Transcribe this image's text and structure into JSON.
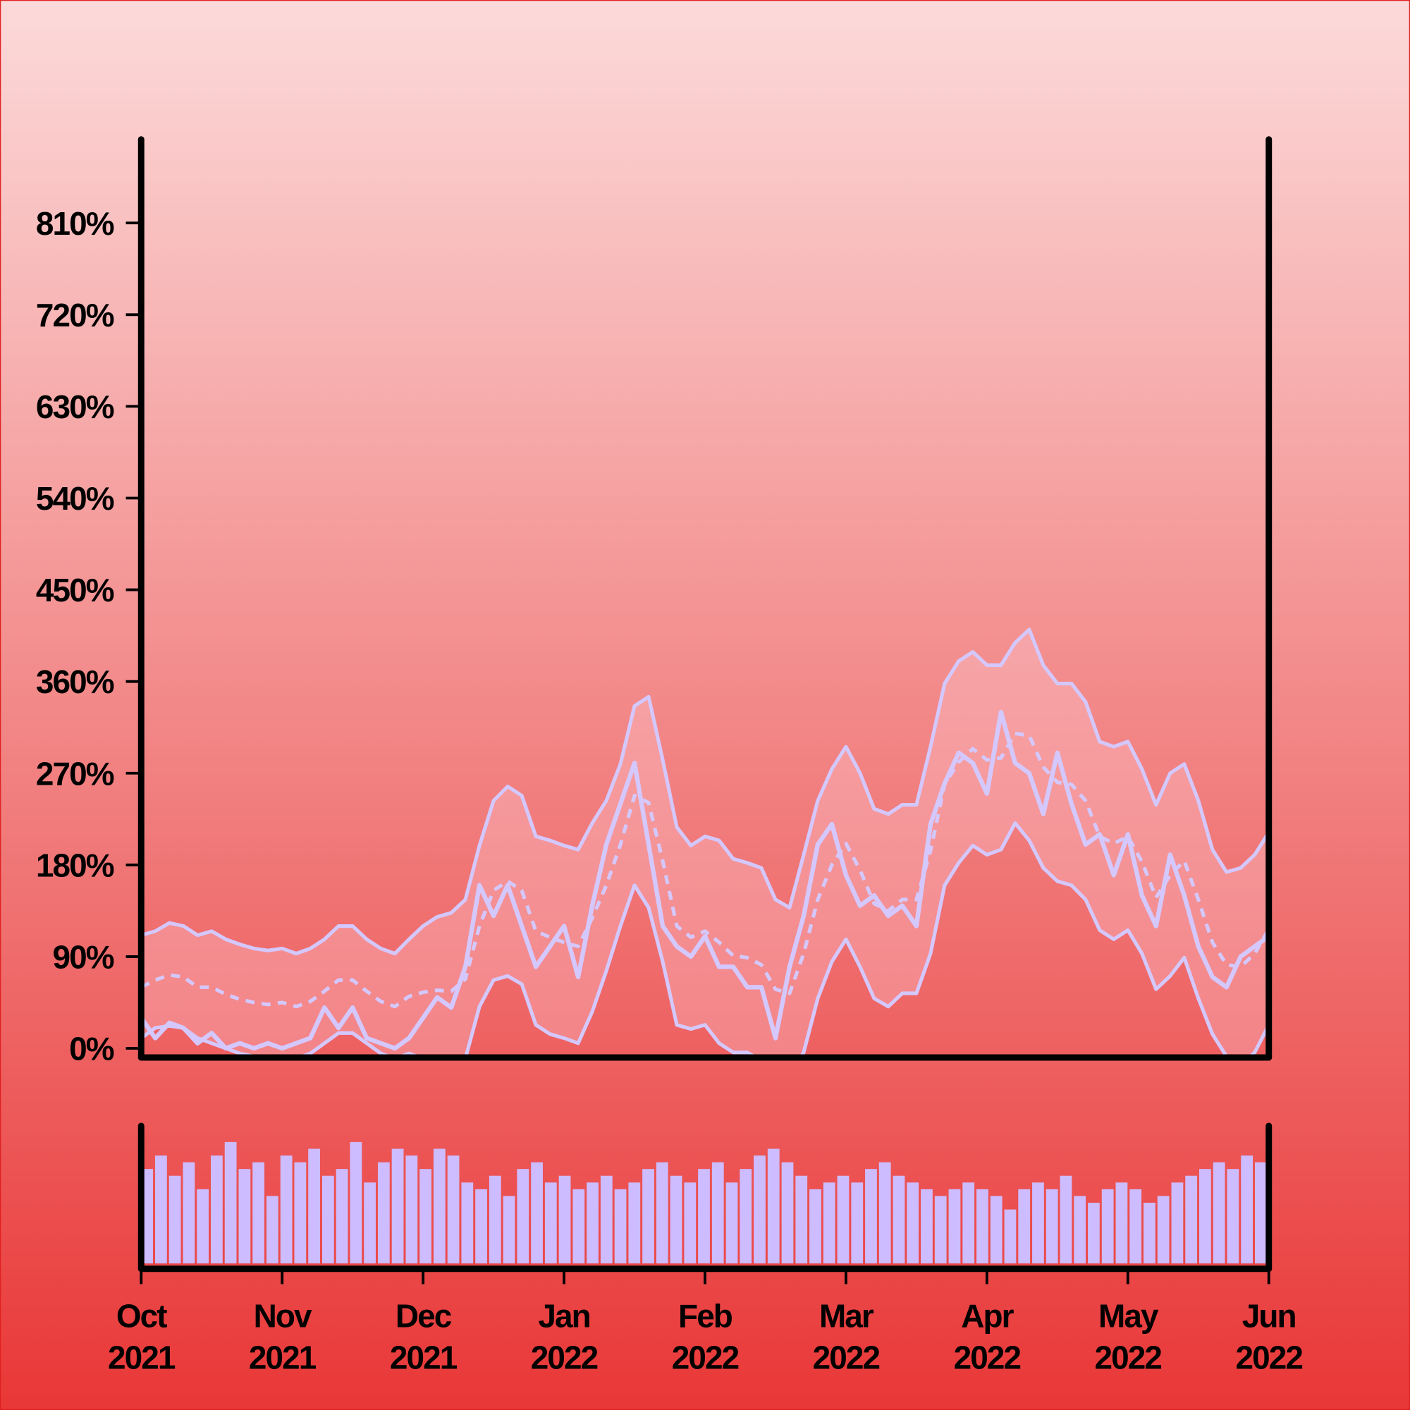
{
  "chart_data": {
    "type": "line",
    "xlim": [
      "2021-10",
      "2022-06"
    ],
    "xticks": [
      {
        "value": "2021-10",
        "label": "Oct 2021"
      },
      {
        "value": "2021-11",
        "label": "Nov 2021"
      },
      {
        "value": "2021-12",
        "label": "Dec 2021"
      },
      {
        "value": "2022-01",
        "label": "Jan 2022"
      },
      {
        "value": "2022-02",
        "label": "Feb 2022"
      },
      {
        "value": "2022-03",
        "label": "Mar 2022"
      },
      {
        "value": "2022-04",
        "label": "Apr 2022"
      },
      {
        "value": "2022-05",
        "label": "May 2022"
      },
      {
        "value": "2022-06",
        "label": "Jun 2022"
      }
    ],
    "ylim": [
      -9,
      892
    ],
    "yticks": [
      {
        "value": 0,
        "label": "0%"
      },
      {
        "value": 90,
        "label": "90%"
      },
      {
        "value": 180,
        "label": "180%"
      },
      {
        "value": 270,
        "label": "270%"
      },
      {
        "value": 360,
        "label": "360%"
      },
      {
        "value": 450,
        "label": "450%"
      },
      {
        "value": 540,
        "label": "540%"
      },
      {
        "value": 630,
        "label": "630%"
      },
      {
        "value": 720,
        "label": "720%"
      },
      {
        "value": 810,
        "label": "810%"
      }
    ],
    "series": [
      {
        "name": "upper",
        "color": "#d4c8ff",
        "values": [
          111,
          115,
          123,
          120,
          111,
          115,
          107,
          102,
          98,
          96,
          98,
          93,
          98,
          107,
          120,
          120,
          107,
          98,
          93,
          107,
          120,
          129,
          133,
          146,
          199,
          243,
          257,
          248,
          208,
          204,
          199,
          195,
          221,
          243,
          279,
          336,
          345,
          283,
          217,
          199,
          208,
          204,
          186,
          182,
          177,
          146,
          138,
          190,
          243,
          274,
          296,
          270,
          235,
          230,
          239,
          239,
          296,
          358,
          380,
          389,
          376,
          376,
          398,
          411,
          376,
          358,
          358,
          340,
          301,
          296,
          301,
          274,
          239,
          270,
          279,
          243,
          195,
          173,
          177,
          190,
          212
        ]
      },
      {
        "name": "lower",
        "color": "#d4c8ff",
        "values": [
          10,
          20,
          22,
          20,
          10,
          5,
          0,
          -5,
          -8,
          -10,
          -8,
          -10,
          -5,
          5,
          15,
          15,
          5,
          -5,
          -10,
          -5,
          -10,
          -15,
          -20,
          -10,
          41,
          67,
          71,
          63,
          23,
          14,
          10,
          5,
          36,
          76,
          120,
          160,
          138,
          85,
          23,
          19,
          23,
          5,
          -4,
          -4,
          -12,
          -30,
          -30,
          -4,
          49,
          85,
          107,
          80,
          49,
          41,
          54,
          54,
          93,
          160,
          182,
          199,
          190,
          195,
          221,
          204,
          177,
          164,
          160,
          146,
          116,
          107,
          116,
          93,
          58,
          71,
          89,
          49,
          14,
          -8,
          -17,
          -4,
          23
        ]
      },
      {
        "name": "middle",
        "color": "#d4c8ff",
        "dashed": true,
        "values": [
          60,
          67,
          72,
          70,
          60,
          60,
          53,
          48,
          45,
          43,
          45,
          41,
          46,
          56,
          67,
          67,
          56,
          46,
          41,
          51,
          55,
          57,
          56,
          68,
          120,
          155,
          164,
          155,
          115,
          109,
          104,
          100,
          128,
          160,
          200,
          248,
          241,
          184,
          120,
          109,
          115,
          104,
          91,
          89,
          82,
          58,
          54,
          93,
          146,
          180,
          201,
          175,
          142,
          135,
          146,
          146,
          194,
          259,
          281,
          294,
          283,
          285,
          309,
          307,
          276,
          261,
          259,
          243,
          208,
          201,
          208,
          183,
          148,
          170,
          184,
          146,
          104,
          82,
          80,
          93,
          117
        ]
      },
      {
        "name": "price",
        "color": "#d4c8ff",
        "width": 5,
        "values": [
          30,
          10,
          25,
          20,
          5,
          15,
          0,
          5,
          0,
          5,
          0,
          5,
          10,
          40,
          20,
          40,
          10,
          5,
          0,
          10,
          30,
          50,
          40,
          80,
          160,
          130,
          160,
          120,
          80,
          100,
          120,
          70,
          140,
          200,
          240,
          280,
          200,
          120,
          100,
          90,
          110,
          80,
          80,
          60,
          60,
          10,
          80,
          130,
          200,
          220,
          170,
          140,
          150,
          130,
          140,
          120,
          220,
          260,
          290,
          280,
          250,
          330,
          280,
          270,
          230,
          290,
          240,
          200,
          210,
          170,
          210,
          150,
          120,
          190,
          150,
          100,
          70,
          60,
          90,
          100,
          110
        ]
      }
    ],
    "band_color": "rgba(255,215,225,0.3)",
    "volume": {
      "color": "#cdbcff",
      "ylim": [
        0,
        100
      ],
      "values": [
        70,
        80,
        65,
        75,
        55,
        80,
        90,
        70,
        75,
        50,
        80,
        75,
        85,
        65,
        70,
        90,
        60,
        75,
        85,
        80,
        70,
        85,
        80,
        60,
        55,
        65,
        50,
        70,
        75,
        60,
        65,
        55,
        60,
        65,
        55,
        60,
        70,
        75,
        65,
        60,
        70,
        75,
        60,
        70,
        80,
        85,
        75,
        65,
        55,
        60,
        65,
        60,
        70,
        75,
        65,
        60,
        55,
        50,
        55,
        60,
        55,
        50,
        40,
        55,
        60,
        55,
        65,
        50,
        45,
        55,
        60,
        55,
        45,
        50,
        60,
        65,
        70,
        75,
        70,
        80,
        75
      ]
    }
  }
}
